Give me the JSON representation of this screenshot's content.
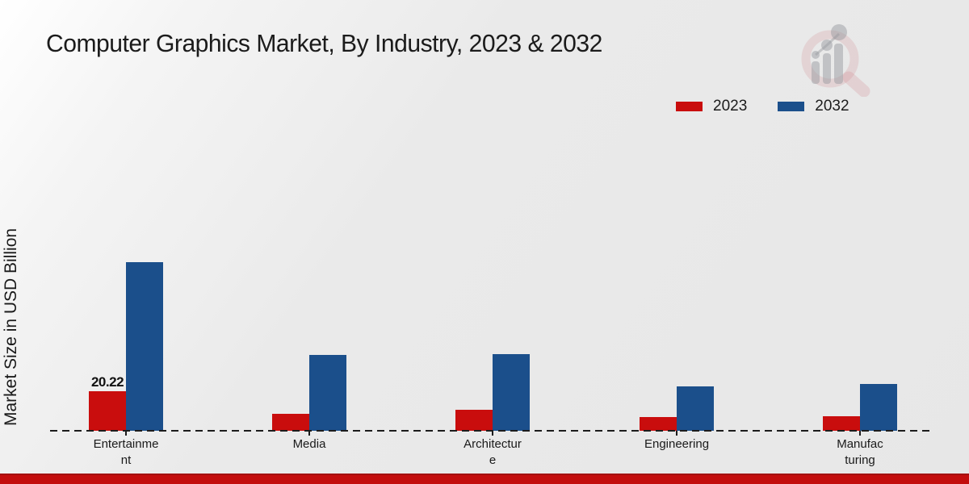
{
  "header": {
    "title": "Computer Graphics Market, By Industry, 2023 & 2032"
  },
  "legend": {
    "items": [
      {
        "label": "2023",
        "color": "#c90d0d"
      },
      {
        "label": "2032",
        "color": "#1b4f8b"
      }
    ]
  },
  "chart_data": {
    "type": "bar",
    "title": "Computer Graphics Market, By Industry, 2023 & 2032",
    "xlabel": "",
    "ylabel": "Market Size in USD Billion",
    "categories": [
      "Entertainment",
      "Media",
      "Architecture",
      "Engineering",
      "Manufacturing"
    ],
    "category_label_lines": [
      [
        "Entertainme",
        "nt"
      ],
      [
        "Media"
      ],
      [
        "Architectur",
        "e"
      ],
      [
        "Engineering"
      ],
      [
        "Manufac",
        "turing"
      ]
    ],
    "series": [
      {
        "name": "2023",
        "color": "#c90d0d",
        "values": [
          20.22,
          8.8,
          10.6,
          7.0,
          7.6
        ]
      },
      {
        "name": "2032",
        "color": "#1b4f8b",
        "values": [
          86.3,
          38.7,
          39.1,
          22.8,
          23.8
        ]
      }
    ],
    "data_labels": [
      {
        "series": "2023",
        "category": "Entertainment",
        "text": "20.22"
      }
    ],
    "ylim": [
      0,
      100
    ],
    "grid": false,
    "legend_position": "top-right",
    "x_axis_style": "dashed-baseline-with-ticks",
    "y_axis_ticks_visible": false
  },
  "watermark": {
    "icon": "magnifier-bar-chart-logo"
  },
  "colors": {
    "red_2023": "#c90d0d",
    "blue_2032": "#1b4f8b",
    "footer_band": "#c30d0d",
    "footer_band_edge": "#a31111",
    "text": "#1a1a1a",
    "background_top_left": "#ffffff",
    "background_main": "#e8e8e8",
    "axis_line": "#1c1c1c"
  }
}
